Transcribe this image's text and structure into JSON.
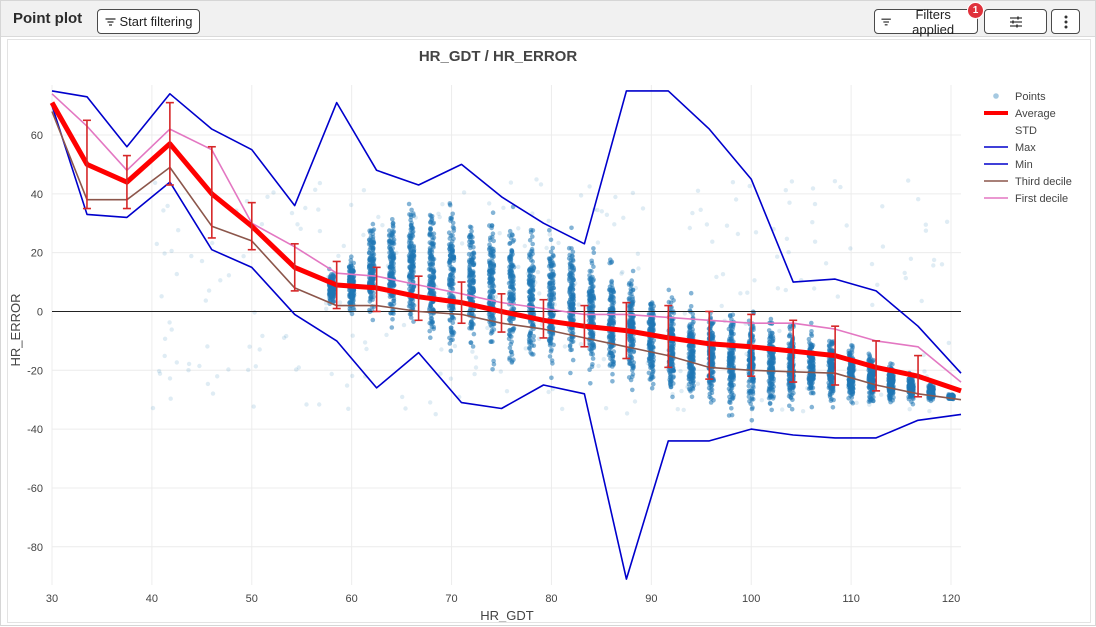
{
  "header": {
    "title": "Point plot",
    "start_filtering_label": "Start filtering",
    "filters_applied_label": "Filters applied",
    "filters_count": "1"
  },
  "icons": {
    "filter": "filter-icon",
    "sliders": "sliders-icon",
    "more": "more-vertical-icon"
  },
  "colors": {
    "points": "#1f77b4",
    "average": "#ff0000",
    "std_bars": "#d62728",
    "max": "#0000cc",
    "min": "#0000cc",
    "third_decile": "#8c564b",
    "first_decile": "#e377c2"
  },
  "chart_data": {
    "type": "line",
    "title": "HR_GDT / HR_ERROR",
    "xlabel": "HR_GDT",
    "ylabel": "HR_ERROR",
    "xlim": [
      30,
      121
    ],
    "ylim": [
      -93,
      77
    ],
    "xticks": [
      30,
      40,
      50,
      60,
      70,
      80,
      90,
      100,
      110,
      120
    ],
    "yticks": [
      -80,
      -60,
      -40,
      -20,
      0,
      20,
      40,
      60
    ],
    "zero_line": true,
    "grid": true,
    "legend_position": "top-right",
    "legend": [
      "Points",
      "Average",
      "STD",
      "Max",
      "Min",
      "Third decile",
      "First decile"
    ],
    "x": [
      30,
      33.5,
      37.5,
      41.8,
      46,
      50,
      54.3,
      58.5,
      62.5,
      66.7,
      71,
      75,
      79.2,
      83.3,
      87.5,
      91.7,
      95.8,
      100,
      104.2,
      108.4,
      112.5,
      116.7,
      121
    ],
    "series": [
      {
        "name": "Average",
        "values": [
          71,
          50,
          44,
          57,
          40,
          29,
          15,
          9,
          8,
          5,
          3,
          0,
          -3,
          -5,
          -6.5,
          -9,
          -11,
          -12,
          -13.5,
          -15,
          -19,
          -22,
          -27
        ]
      },
      {
        "name": "Max",
        "values": [
          75,
          73,
          56,
          74,
          62,
          55,
          36,
          71,
          48,
          43,
          50,
          39,
          30,
          23,
          75,
          75,
          62,
          45,
          10,
          11,
          7,
          -5,
          -21
        ]
      },
      {
        "name": "Min",
        "values": [
          70,
          33,
          32,
          44,
          21,
          15,
          -1,
          -10,
          -26,
          -14,
          -31,
          -33,
          -25,
          -28,
          -91,
          -44,
          -44,
          -40,
          -42,
          -43,
          -43,
          -37,
          -35
        ]
      },
      {
        "name": "Third decile",
        "values": [
          68,
          38,
          38,
          49,
          29,
          24,
          8,
          2,
          2,
          0,
          -1,
          -4,
          -6,
          -9,
          -12,
          -15,
          -19,
          -20,
          -20.5,
          -21,
          -25,
          -28,
          -30
        ]
      },
      {
        "name": "First decile",
        "values": [
          74,
          63,
          48,
          62,
          55,
          30,
          22,
          13,
          12,
          9,
          6,
          3,
          1,
          -1,
          -1,
          -2,
          -3,
          -4,
          -4,
          -6,
          -10,
          -12,
          -24
        ]
      }
    ],
    "std": {
      "x": [
        33.5,
        37.5,
        41.8,
        46,
        50,
        54.3,
        58.5,
        62.5,
        66.7,
        71,
        75,
        79.2,
        83.3,
        87.5,
        91.7,
        95.8,
        100,
        104.2,
        108.4,
        112.5,
        116.7
      ],
      "lower": [
        35,
        35,
        43,
        25,
        21,
        7,
        1,
        0,
        -3,
        -4,
        -7,
        -9,
        -12,
        -16,
        -19,
        -23,
        -22,
        -24,
        -25,
        -27,
        -29
      ],
      "upper": [
        65,
        53,
        71,
        56,
        37,
        23,
        17,
        15,
        12,
        10,
        6,
        4,
        2,
        3,
        2,
        0,
        -1,
        -3,
        -5,
        -10,
        -15
      ]
    },
    "points_bands": [
      [
        58,
        1,
        15
      ],
      [
        60,
        -2,
        20
      ],
      [
        62,
        -6,
        34
      ],
      [
        64,
        -10,
        38
      ],
      [
        66,
        -14,
        41
      ],
      [
        68,
        -17,
        42
      ],
      [
        70,
        -19,
        42
      ],
      [
        72,
        -21,
        41
      ],
      [
        74,
        -23,
        40
      ],
      [
        76,
        -24,
        38
      ],
      [
        78,
        -25,
        35
      ],
      [
        80,
        -25,
        32
      ],
      [
        82,
        -26,
        30
      ],
      [
        84,
        -27,
        26
      ],
      [
        86,
        -28,
        22
      ],
      [
        88,
        -30,
        18
      ],
      [
        90,
        -32,
        14
      ],
      [
        92,
        -34,
        10
      ],
      [
        94,
        -36,
        8
      ],
      [
        96,
        -38,
        6
      ],
      [
        98,
        -38,
        4
      ],
      [
        100,
        -38,
        3
      ],
      [
        102,
        -37,
        2
      ],
      [
        104,
        -36,
        0
      ],
      [
        106,
        -35,
        -2
      ],
      [
        108,
        -34,
        -5
      ],
      [
        110,
        -34,
        -8
      ],
      [
        112,
        -33,
        -12
      ],
      [
        114,
        -32,
        -16
      ],
      [
        116,
        -32,
        -20
      ],
      [
        118,
        -31,
        -24
      ],
      [
        120,
        -30,
        -28
      ]
    ]
  }
}
